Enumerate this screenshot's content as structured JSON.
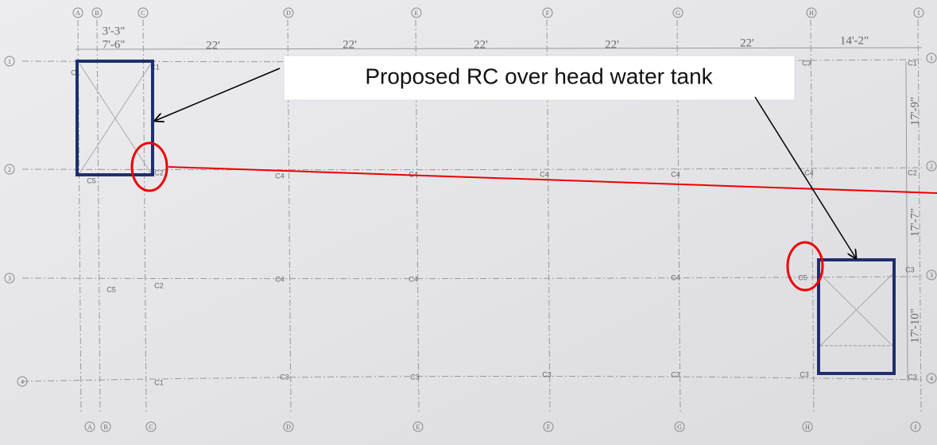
{
  "callout": "Proposed RC over head water tank",
  "grid_top": [
    "A",
    "B",
    "C",
    "D",
    "E",
    "F",
    "G",
    "H",
    "I"
  ],
  "grid_bottom": [
    "A",
    "B",
    "C",
    "D",
    "E",
    "F",
    "G",
    "H",
    "I"
  ],
  "rows_left": [
    "1",
    "2",
    "3",
    "4"
  ],
  "rows_right": [
    "1",
    "2",
    "3",
    "4"
  ],
  "dimensions": [
    "3'-3\"",
    "7'-6\"",
    "22'",
    "22'",
    "22'",
    "22'",
    "22'",
    "14'-2\"",
    "17'-9\"",
    "17'-7\"",
    "17'-10\""
  ],
  "column_labels": [
    "C1",
    "C1",
    "C3",
    "C1",
    "C5",
    "C2",
    "C4",
    "C4",
    "C4",
    "C4",
    "C4",
    "C2",
    "C5",
    "C2",
    "C4",
    "C4",
    "C4",
    "C5",
    "C3",
    "C1",
    "C3",
    "C3",
    "C3",
    "C3",
    "C3",
    "C3"
  ]
}
